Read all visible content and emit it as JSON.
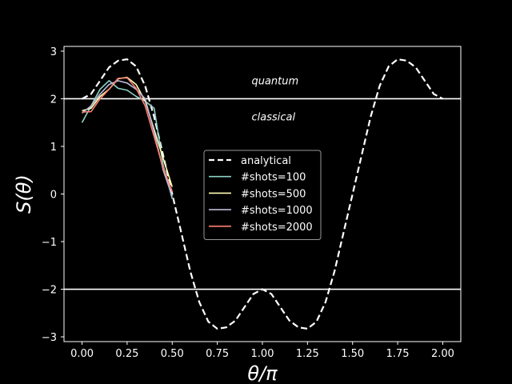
{
  "chart_data": {
    "type": "line",
    "xlabel": "θ/π",
    "ylabel": "S(θ)",
    "xlim": [
      -0.1,
      2.1
    ],
    "ylim": [
      -3.1,
      3.1
    ],
    "xticks": [
      0.0,
      0.25,
      0.5,
      0.75,
      1.0,
      1.25,
      1.5,
      1.75,
      2.0
    ],
    "xtick_labels": [
      "0.00",
      "0.25",
      "0.50",
      "0.75",
      "1.00",
      "1.25",
      "1.50",
      "1.75",
      "2.00"
    ],
    "yticks": [
      -3,
      -2,
      -1,
      0,
      1,
      2,
      3
    ],
    "ytick_labels": [
      "−3",
      "−2",
      "−1",
      "0",
      "1",
      "2",
      "3"
    ],
    "reference_lines": [
      2,
      -2
    ],
    "annotations": [
      {
        "text": "quantum",
        "x": 0.94,
        "y": 2.3
      },
      {
        "text": "classical",
        "x": 0.94,
        "y": 1.55
      }
    ],
    "legend_position": "center",
    "series": [
      {
        "name": "analytical",
        "style": "dashed",
        "color": "#ffffff",
        "x": [
          0,
          0.05,
          0.1,
          0.15,
          0.2,
          0.25,
          0.3,
          0.35,
          0.4,
          0.45,
          0.5,
          0.55,
          0.6,
          0.65,
          0.7,
          0.75,
          0.8,
          0.85,
          0.9,
          0.95,
          1.0,
          1.05,
          1.1,
          1.15,
          1.2,
          1.25,
          1.3,
          1.35,
          1.4,
          1.45,
          1.5,
          1.55,
          1.6,
          1.65,
          1.7,
          1.75,
          1.8,
          1.85,
          1.9,
          1.95,
          2.0
        ],
        "y": [
          2.0,
          2.1,
          2.38,
          2.66,
          2.8,
          2.83,
          2.68,
          2.27,
          1.62,
          0.81,
          0.0,
          -0.81,
          -1.62,
          -2.27,
          -2.68,
          -2.83,
          -2.8,
          -2.66,
          -2.38,
          -2.1,
          -2.0,
          -2.1,
          -2.38,
          -2.66,
          -2.8,
          -2.83,
          -2.68,
          -2.27,
          -1.62,
          -0.81,
          0.0,
          0.81,
          1.62,
          2.27,
          2.68,
          2.83,
          2.8,
          2.66,
          2.38,
          2.1,
          2.0
        ]
      },
      {
        "name": "#shots=100",
        "color": "#8dd3c7",
        "x": [
          0,
          0.05,
          0.1,
          0.15,
          0.2,
          0.25,
          0.3,
          0.35,
          0.4,
          0.45,
          0.5
        ],
        "y": [
          1.5,
          1.85,
          2.2,
          2.38,
          2.22,
          2.18,
          2.05,
          1.95,
          1.8,
          0.6,
          -0.1
        ]
      },
      {
        "name": "#shots=500",
        "color": "#ffffb3",
        "x": [
          0,
          0.05,
          0.1,
          0.15,
          0.2,
          0.25,
          0.3,
          0.35,
          0.4,
          0.45,
          0.5
        ],
        "y": [
          1.75,
          1.8,
          2.05,
          2.2,
          2.42,
          2.45,
          2.3,
          1.95,
          1.35,
          0.75,
          0.15
        ]
      },
      {
        "name": "#shots=1000",
        "color": "#bebada",
        "x": [
          0,
          0.05,
          0.1,
          0.15,
          0.2,
          0.25,
          0.3,
          0.35,
          0.4,
          0.45,
          0.5
        ],
        "y": [
          1.7,
          1.85,
          2.1,
          2.3,
          2.38,
          2.33,
          2.2,
          2.0,
          1.3,
          0.5,
          -0.05
        ]
      },
      {
        "name": "#shots=2000",
        "color": "#fb8072",
        "x": [
          0,
          0.05,
          0.1,
          0.15,
          0.2,
          0.25,
          0.3,
          0.35,
          0.4,
          0.45,
          0.5
        ],
        "y": [
          1.72,
          1.73,
          2.0,
          2.2,
          2.43,
          2.44,
          2.22,
          1.85,
          1.2,
          0.55,
          0.05
        ]
      }
    ]
  }
}
